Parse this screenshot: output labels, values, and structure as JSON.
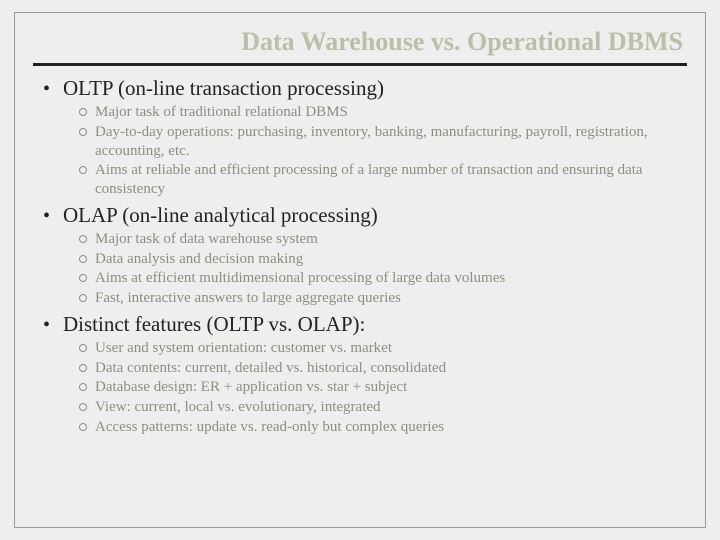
{
  "title": "Data Warehouse vs. Operational DBMS",
  "colors": {
    "background": "#eeeeee",
    "title_color": "#b8c0a8",
    "rule_color": "#222222",
    "body_color": "#222222",
    "sub_color": "#8a9080"
  },
  "typography": {
    "family": "Georgia, serif",
    "title_size_pt": 20,
    "section_size_pt": 16,
    "sub_size_pt": 11
  },
  "sections": [
    {
      "heading": "OLTP (on-line transaction processing)",
      "items": [
        "Major task of traditional relational DBMS",
        "Day-to-day operations: purchasing, inventory, banking, manufacturing, payroll, registration, accounting, etc.",
        "Aims at reliable and efficient processing of a large number of transaction and ensuring data consistency"
      ]
    },
    {
      "heading": "OLAP (on-line analytical processing)",
      "items": [
        "Major task of data warehouse system",
        "Data analysis and decision making",
        "Aims at efficient multidimensional processing of large data volumes",
        "Fast, interactive answers to large aggregate queries"
      ]
    },
    {
      "heading": "Distinct features (OLTP vs. OLAP):",
      "items": [
        "User and system orientation: customer vs. market",
        "Data contents: current, detailed vs. historical, consolidated",
        "Database design: ER + application vs. star + subject",
        "View: current, local vs. evolutionary, integrated",
        "Access patterns: update vs. read-only but complex queries"
      ]
    }
  ]
}
